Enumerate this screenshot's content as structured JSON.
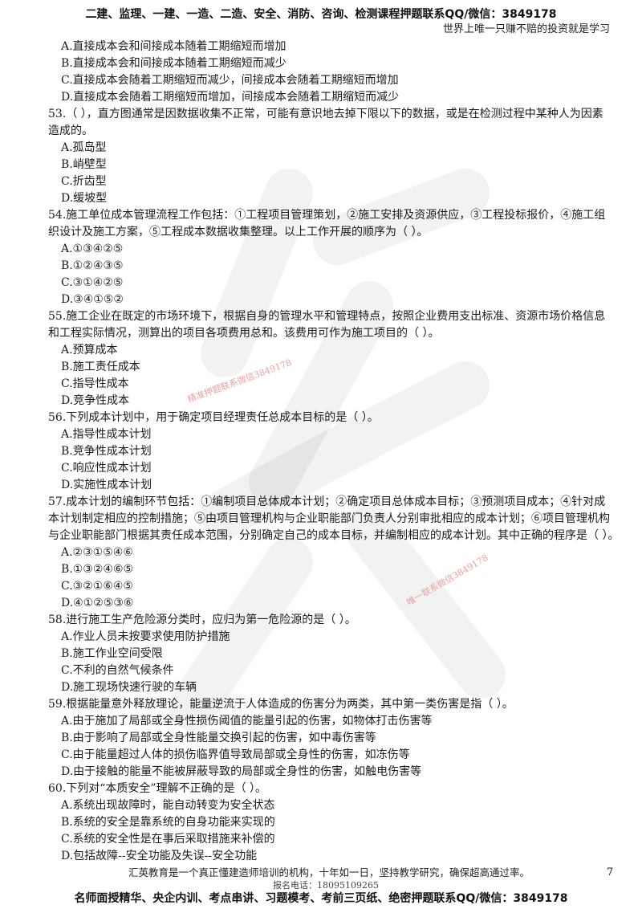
{
  "header": {
    "title": "二建、监理、一建、一造、二造、安全、消防、咨询、检测课程押题联系QQ/微信：3849178",
    "slogan": "世界上唯一只赚不赔的投资就是学习"
  },
  "watermarks": [
    "精准押题联系微信3849178",
    "唯一联系微信3849178"
  ],
  "blocks": [
    {
      "options": [
        "A.直接成本会和间接成本随着工期缩短而增加",
        "B.直接成本会和间接成本随着工期缩短而减少",
        "C.直接成本会随着工期缩短而减少，间接成本会随着工期缩短而增加",
        "D.直接成本会随着工期缩短而增加，间接成本会随着工期缩短而减少"
      ]
    },
    {
      "lines": [
        "53.（ ），直方图通常是因数据收集不正常，可能有意识地去掉下限以下的数据，或是在检测过程中某种人为因素",
        "造成的。"
      ],
      "options": [
        "A.孤岛型",
        "B.峭壁型",
        "C.折齿型",
        "D.缓坡型"
      ]
    },
    {
      "lines": [
        "54.施工单位成本管理流程工作包括：①工程项目管理策划，②施工安排及资源供应，③工程投标报价，④施工组",
        "织设计及施工方案，⑤工程成本数据收集整理。以上工作开展的顺序为（ ）。"
      ],
      "options": [
        "A.①③④②⑤",
        "B.①②④③⑤",
        "C.③①④②⑤",
        "D.③④①⑤②"
      ]
    },
    {
      "lines": [
        "55.施工企业在既定的市场环境下，根据自身的管理水平和管理特点，按照企业费用支出标准、资源市场价格信息",
        "和工程实际情况，测算出的项目各项费用总和。该费用可作为施工项目的（ ）。"
      ],
      "options": [
        "A.预算成本",
        "B.施工责任成本",
        "C.指导性成本",
        "D.竞争性成本"
      ]
    },
    {
      "lines": [
        "56.下列成本计划中，用于确定项目经理责任总成本目标的是（ ）。"
      ],
      "options": [
        "A.指导性成本计划",
        "B.竞争性成本计划",
        "C.响应性成本计划",
        "D.实施性成本计划"
      ]
    },
    {
      "lines": [
        "57.成本计划的编制环节包括：①编制项目总体成本计划；②确定项目总体成本目标；③预测项目成本；④针对成",
        "本计划制定相应的控制措施；⑤由项目管理机构与企业职能部门负责人分别审批相应的成本计划；⑥项目管理机构",
        "与企业职能部门根据其责任成本范围，分别确定自己的成本目标，并编制相应的成本计划。其中正确的程序是（ ）。"
      ],
      "options": [
        "A.②③①⑤④⑥",
        "B.①③②④⑥⑤",
        "C.③②①⑥④⑤",
        "D.④①②⑤③⑥"
      ]
    },
    {
      "lines": [
        "58.进行施工生产危险源分类时，应归为第一危险源的是（ ）。"
      ],
      "options": [
        "A.作业人员未按要求使用防护措施",
        "B.施工作业空间受限",
        "C.不利的自然气候条件",
        "D.施工现场快速行驶的车辆"
      ]
    },
    {
      "lines": [
        "59.根据能量意外释放理论，能量逆流于人体造成的伤害分为两类，其中第一类伤害是指（ ）。"
      ],
      "options": [
        "A.由于施加了局部或全身性损伤阈值的能量引起的伤害，如物体打击伤害等",
        "B.由于影响了局部或全身性能量交换引起的伤害，如中毒伤害等",
        "C.由于能量超过人体的损伤临界值导致局部或全身性的伤害，如冻伤等",
        "D.由于接触的能量不能被屏蔽导致的局部或全身性的伤害，如触电伤害等"
      ]
    },
    {
      "lines": [
        "60.下列对“本质安全”理解不正确的是（ ）。"
      ],
      "options": [
        "A.系统出现故障时，能自动转变为安全状态",
        "B.系统的安全是靠系统的自身功能来实现的",
        "C.系统的安全性是在事后采取措施来补偿的",
        "D.包括故障--安全功能及失误--安全功能"
      ]
    }
  ],
  "footer": {
    "line1": "汇英教育是一个真正懂建造师培训的机构，十年如一日，坚持教学研究，确保超高通过率。",
    "page": "7",
    "phone": "报名电话：18095109265",
    "line2": "名师面授精华、央企内训、考点串讲、习题模考、考前三页纸、绝密押题联系QQ/微信：3849178"
  }
}
